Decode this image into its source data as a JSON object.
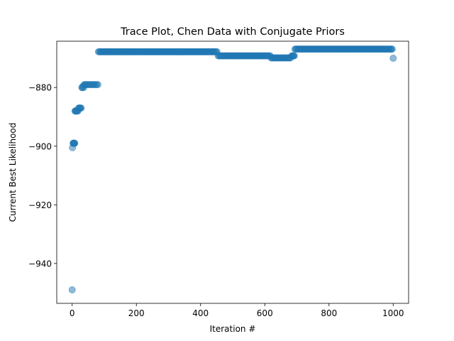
{
  "chart_data": {
    "type": "scatter",
    "title": "Trace Plot, Chen Data with Conjugate Priors",
    "xlabel": "Iteration #",
    "ylabel": "Current Best Likelihood",
    "xlim": [
      -48,
      1048
    ],
    "ylim": [
      -953.6,
      -864.2
    ],
    "xticks": [
      0,
      200,
      400,
      600,
      800,
      1000
    ],
    "yticks": [
      -940,
      -920,
      -900,
      -880
    ],
    "grid": false,
    "marker_color": "#1f77b4",
    "marker_alpha": 0.5,
    "points": [
      [
        0,
        -949
      ],
      [
        1,
        -900.5
      ],
      [
        3,
        -899
      ],
      [
        4,
        -899
      ],
      [
        5,
        -899
      ],
      [
        6,
        -899
      ],
      [
        7,
        -899
      ],
      [
        8,
        -899
      ],
      [
        9,
        -888
      ],
      [
        10,
        -888
      ],
      [
        12,
        -888
      ],
      [
        14,
        -888
      ],
      [
        16,
        -888
      ],
      [
        18,
        -888
      ],
      [
        20,
        -887
      ],
      [
        22,
        -887
      ],
      [
        24,
        -887
      ],
      [
        26,
        -887
      ],
      [
        28,
        -887
      ],
      [
        30,
        -880
      ],
      [
        32,
        -880
      ],
      [
        34,
        -879.5
      ],
      [
        36,
        -880
      ],
      [
        38,
        -879
      ],
      [
        40,
        -879
      ],
      [
        44,
        -879
      ],
      [
        48,
        -879
      ],
      [
        52,
        -879
      ],
      [
        56,
        -879
      ],
      [
        60,
        -879
      ],
      [
        64,
        -879
      ],
      [
        68,
        -879
      ],
      [
        72,
        -879
      ],
      [
        76,
        -879
      ],
      [
        80,
        -879
      ],
      [
        1000,
        -870
      ]
    ],
    "segments": [
      {
        "x_start": 82,
        "x_end": 453,
        "step": 3,
        "y": -867.8
      },
      {
        "x_start": 455,
        "x_end": 618,
        "step": 3,
        "y": -869.2
      },
      {
        "x_start": 620,
        "x_end": 682,
        "step": 3,
        "y": -869.9
      },
      {
        "x_start": 684,
        "x_end": 692,
        "step": 2,
        "y": -869.2
      },
      {
        "x_start": 694,
        "x_end": 998,
        "step": 3,
        "y": -866.9
      }
    ]
  }
}
